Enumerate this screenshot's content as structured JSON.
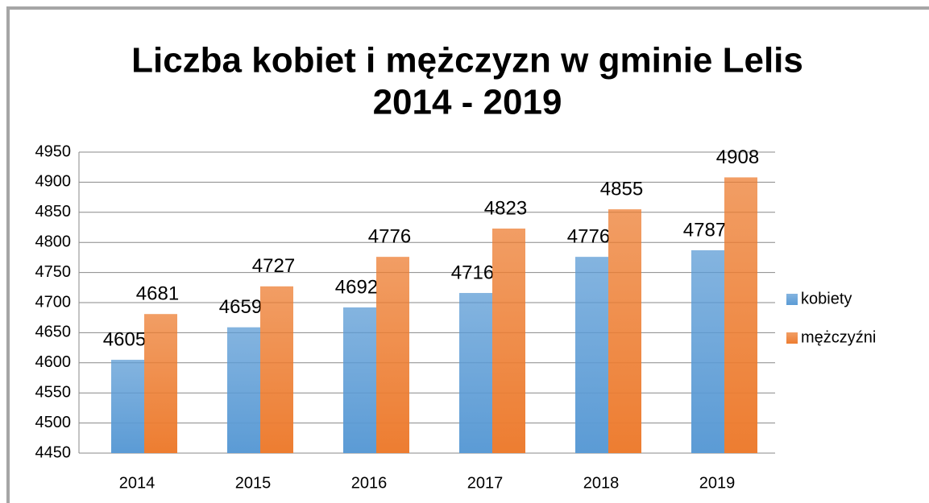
{
  "chart_data": {
    "type": "bar",
    "title": [
      "Liczba kobiet i mężczyzn w gminie Lelis",
      "2014 - 2019"
    ],
    "categories": [
      "2014",
      "2015",
      "2016",
      "2017",
      "2018",
      "2019"
    ],
    "series": [
      {
        "name": "kobiety",
        "color": "#5b9bd5",
        "values": [
          4605,
          4659,
          4692,
          4716,
          4776,
          4787
        ]
      },
      {
        "name": "mężczyźni",
        "color": "#ed7d31",
        "values": [
          4681,
          4727,
          4776,
          4823,
          4855,
          4908
        ]
      }
    ],
    "ylim": [
      4450,
      4950
    ],
    "yticks": [
      4450,
      4500,
      4550,
      4600,
      4650,
      4700,
      4750,
      4800,
      4850,
      4900,
      4950
    ],
    "grid": true,
    "legend": "right",
    "data_labels": true
  }
}
